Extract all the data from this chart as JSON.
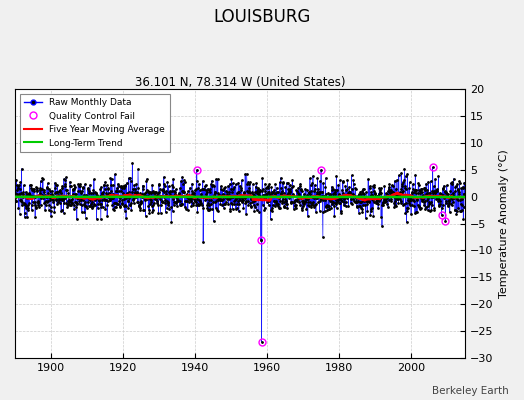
{
  "title": "LOUISBURG",
  "subtitle": "36.101 N, 78.314 W (United States)",
  "ylabel": "Temperature Anomaly (°C)",
  "xlabel_bottom": "Berkeley Earth",
  "ylim": [
    -30,
    20
  ],
  "yticks": [
    -30,
    -25,
    -20,
    -15,
    -10,
    -5,
    0,
    5,
    10,
    15,
    20
  ],
  "year_start": 1890,
  "year_end": 2015,
  "xticks": [
    1900,
    1920,
    1940,
    1960,
    1980,
    2000
  ],
  "bg_color": "#f0f0f0",
  "plot_bg_color": "#ffffff",
  "raw_line_color": "#0000ff",
  "raw_dot_color": "#000000",
  "qc_fail_color": "#ff00ff",
  "moving_avg_color": "#ff0000",
  "trend_color": "#00cc00",
  "seed": 12345
}
